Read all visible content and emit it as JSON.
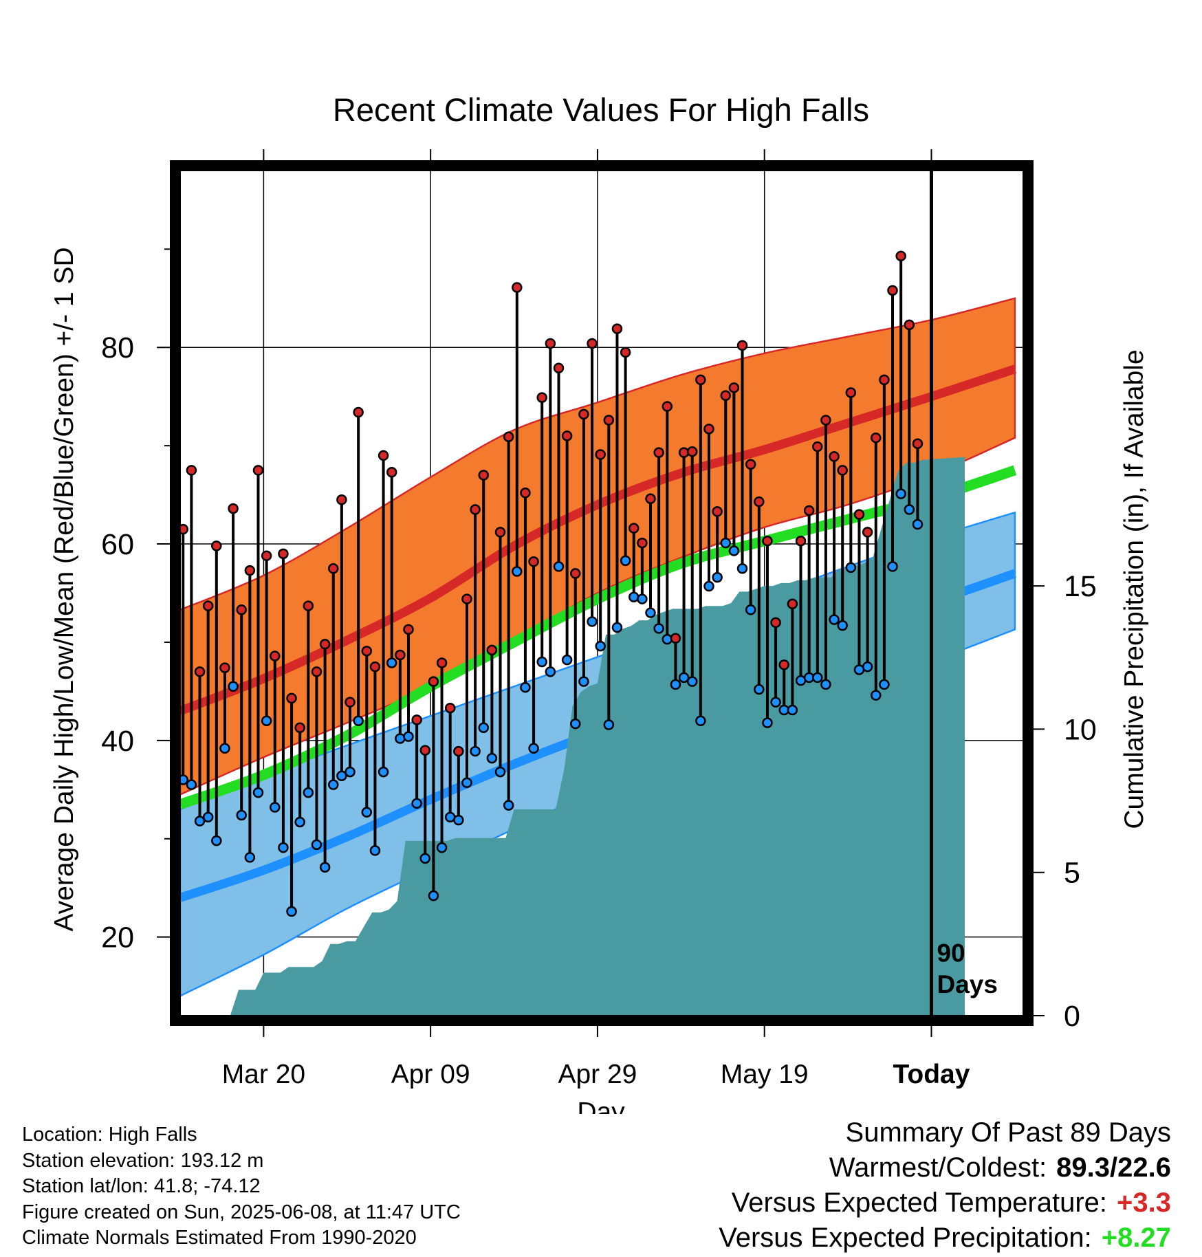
{
  "chart_data": {
    "type": "line",
    "title": "Recent Climate Values For High Falls",
    "xlabel": "Day",
    "ylabel": "Average Daily High/Low/Mean (Red/Blue/Green) +/- 1 SD",
    "y2label": "Cumulative Precipitation (in), If Available",
    "x_range": [
      "2025-03-10",
      "2025-06-19"
    ],
    "x_ticks": [
      {
        "date": "2025-03-20",
        "label": "Mar 20"
      },
      {
        "date": "2025-04-09",
        "label": "Apr 09"
      },
      {
        "date": "2025-04-29",
        "label": "Apr 29"
      },
      {
        "date": "2025-05-19",
        "label": "May 19"
      },
      {
        "date": "2025-06-08",
        "label": "Today"
      }
    ],
    "ylim": [
      12,
      98
    ],
    "y_ticks": [
      20,
      40,
      60,
      80
    ],
    "y2lim": [
      0,
      29.5
    ],
    "y2_ticks": [
      0,
      5,
      10,
      15
    ],
    "today_marker": {
      "date": "2025-06-08",
      "label_line1": "90",
      "label_line2": "Days"
    },
    "grid": true,
    "colors": {
      "high_band": "#f47a2e",
      "high_mean": "#d72828",
      "low_band": "#7fbfe8",
      "low_mean": "#1e90ff",
      "mean": "#22dd22",
      "precip": "#4a9aa2",
      "high_marker": "#d72828",
      "low_marker": "#1e90ff"
    },
    "normals": {
      "dates": [
        "2025-03-10",
        "2025-03-20",
        "2025-03-30",
        "2025-04-09",
        "2025-04-19",
        "2025-04-29",
        "2025-05-09",
        "2025-05-19",
        "2025-05-29",
        "2025-06-08",
        "2025-06-18"
      ],
      "high_mean": [
        43.0,
        46.3,
        50.2,
        54.5,
        59.8,
        64.0,
        67.2,
        69.6,
        72.3,
        75.0,
        77.8
      ],
      "high_upper": [
        53.3,
        56.8,
        61.6,
        66.8,
        71.6,
        74.4,
        77.2,
        79.4,
        81.1,
        82.8,
        85.0
      ],
      "high_lower": [
        34.5,
        38.3,
        41.8,
        45.5,
        50.2,
        55.0,
        58.6,
        61.7,
        64.0,
        67.0,
        70.8
      ],
      "mean": [
        33.5,
        36.5,
        40.5,
        45.5,
        50.0,
        54.4,
        58.0,
        60.3,
        62.5,
        64.7,
        67.5
      ],
      "low_mean": [
        24.0,
        26.8,
        30.2,
        34.0,
        37.6,
        40.9,
        44.2,
        47.6,
        50.8,
        54.0,
        57.0
      ],
      "low_upper": [
        33.0,
        36.4,
        39.5,
        42.5,
        45.5,
        48.5,
        51.5,
        54.6,
        57.7,
        60.6,
        63.2
      ],
      "low_lower": [
        14.0,
        18.2,
        22.9,
        27.0,
        31.0,
        35.0,
        38.5,
        41.5,
        44.6,
        48.0,
        51.3
      ]
    },
    "daily": {
      "start_date": "2025-03-10",
      "high": [
        61.5,
        67.5,
        47.0,
        53.7,
        59.8,
        47.4,
        63.6,
        53.3,
        57.3,
        67.5,
        58.8,
        48.6,
        59.0,
        44.3,
        41.3,
        53.7,
        47.0,
        49.8,
        57.5,
        64.5,
        43.9,
        73.4,
        49.1,
        47.5,
        69.0,
        67.3,
        48.7,
        51.3,
        42.1,
        39.0,
        46.0,
        47.9,
        43.3,
        38.9,
        54.4,
        63.5,
        67.0,
        49.2,
        61.2,
        70.9,
        86.1,
        65.2,
        58.2,
        74.9,
        80.4,
        77.9,
        71.0,
        57.0,
        73.2,
        80.4,
        69.1,
        72.6,
        81.9,
        79.5,
        61.6,
        60.1,
        64.6,
        69.3,
        74.0,
        50.4,
        69.3,
        69.4,
        76.7,
        71.7,
        63.3,
        75.1,
        75.9,
        80.2,
        68.1,
        64.3,
        60.3,
        52.0,
        47.7,
        53.9,
        60.3,
        63.4,
        69.9,
        72.6,
        68.9,
        67.5,
        75.4,
        63.0,
        61.2,
        70.8,
        76.7,
        85.8,
        89.3,
        82.3,
        70.2
      ],
      "low": [
        36.0,
        35.5,
        31.8,
        32.2,
        29.8,
        39.2,
        45.5,
        32.4,
        28.1,
        34.7,
        42.0,
        33.2,
        29.1,
        22.6,
        31.7,
        34.7,
        29.4,
        27.1,
        35.5,
        36.4,
        36.8,
        42.0,
        32.7,
        28.8,
        36.8,
        47.9,
        40.2,
        40.4,
        33.6,
        28.0,
        24.2,
        29.1,
        32.2,
        31.9,
        35.7,
        38.9,
        41.3,
        38.2,
        36.8,
        33.4,
        57.2,
        45.4,
        39.2,
        48.0,
        47.0,
        57.7,
        48.2,
        41.7,
        46.0,
        52.1,
        49.6,
        41.6,
        51.5,
        58.3,
        54.6,
        54.4,
        53.0,
        51.4,
        50.3,
        45.7,
        46.4,
        46.0,
        42.0,
        55.7,
        56.6,
        60.1,
        59.3,
        57.5,
        53.3,
        45.2,
        41.8,
        43.9,
        43.1,
        43.1,
        46.1,
        46.4,
        46.4,
        45.7,
        52.3,
        51.7,
        57.6,
        47.2,
        47.5,
        44.6,
        45.7,
        57.7,
        65.1,
        63.5,
        62.0
      ]
    },
    "precip_cumulative": {
      "days": [
        0,
        6,
        7,
        8,
        9,
        10,
        11,
        12,
        13,
        14,
        15,
        16,
        17,
        18,
        19,
        20,
        21,
        22,
        23,
        24,
        25,
        26,
        27,
        28,
        29,
        30,
        31,
        32,
        33,
        34,
        35,
        36,
        37,
        38,
        39,
        40,
        41,
        42,
        43,
        44,
        45,
        46,
        47,
        48,
        49,
        50,
        51,
        52,
        53,
        54,
        55,
        56,
        57,
        58,
        59,
        60,
        61,
        62,
        63,
        64,
        65,
        66,
        67,
        68,
        69,
        70,
        71,
        72,
        73,
        74,
        75,
        76,
        77,
        78,
        79,
        80,
        81,
        82,
        83,
        84,
        85,
        86,
        87,
        88,
        89,
        94
      ],
      "values": [
        0,
        0,
        0.9,
        0.9,
        0.9,
        1.5,
        1.5,
        1.5,
        1.7,
        1.7,
        1.7,
        1.7,
        1.9,
        2.5,
        2.5,
        2.6,
        2.6,
        3.1,
        3.6,
        3.6,
        3.7,
        4.0,
        6.1,
        6.1,
        6.1,
        6.1,
        6.1,
        6.1,
        6.2,
        6.2,
        6.2,
        6.2,
        6.2,
        6.2,
        6.2,
        7.2,
        7.2,
        7.2,
        7.2,
        7.2,
        7.2,
        8.6,
        10.8,
        11.3,
        11.5,
        11.6,
        13.3,
        13.3,
        13.5,
        13.6,
        13.8,
        13.8,
        14.0,
        14.1,
        14.2,
        14.2,
        14.2,
        14.2,
        14.3,
        14.3,
        14.3,
        14.4,
        14.8,
        14.8,
        14.9,
        15.0,
        15.0,
        15.1,
        15.1,
        15.2,
        15.2,
        15.3,
        15.3,
        15.3,
        15.6,
        15.6,
        15.7,
        15.8,
        16.0,
        17.0,
        18.0,
        19.0,
        19.3,
        19.3,
        19.4,
        19.5
      ]
    }
  },
  "footer_left": {
    "location": "Location: High Falls",
    "elevation": "Station elevation: 193.12 m",
    "latlon": "Station lat/lon: 41.8; -74.12",
    "created": "Figure created on Sun, 2025-06-08, at 11:47 UTC",
    "normals": "Climate Normals Estimated From 1990-2020"
  },
  "footer_right": {
    "heading": "Summary Of Past 89 Days",
    "warmest_label": "Warmest/Coldest:",
    "warmest_value": "89.3/22.6",
    "temp_label": "Versus Expected Temperature:",
    "temp_value": "+3.3",
    "precip_label": "Versus Expected Precipitation:",
    "precip_value": "+8.27"
  }
}
